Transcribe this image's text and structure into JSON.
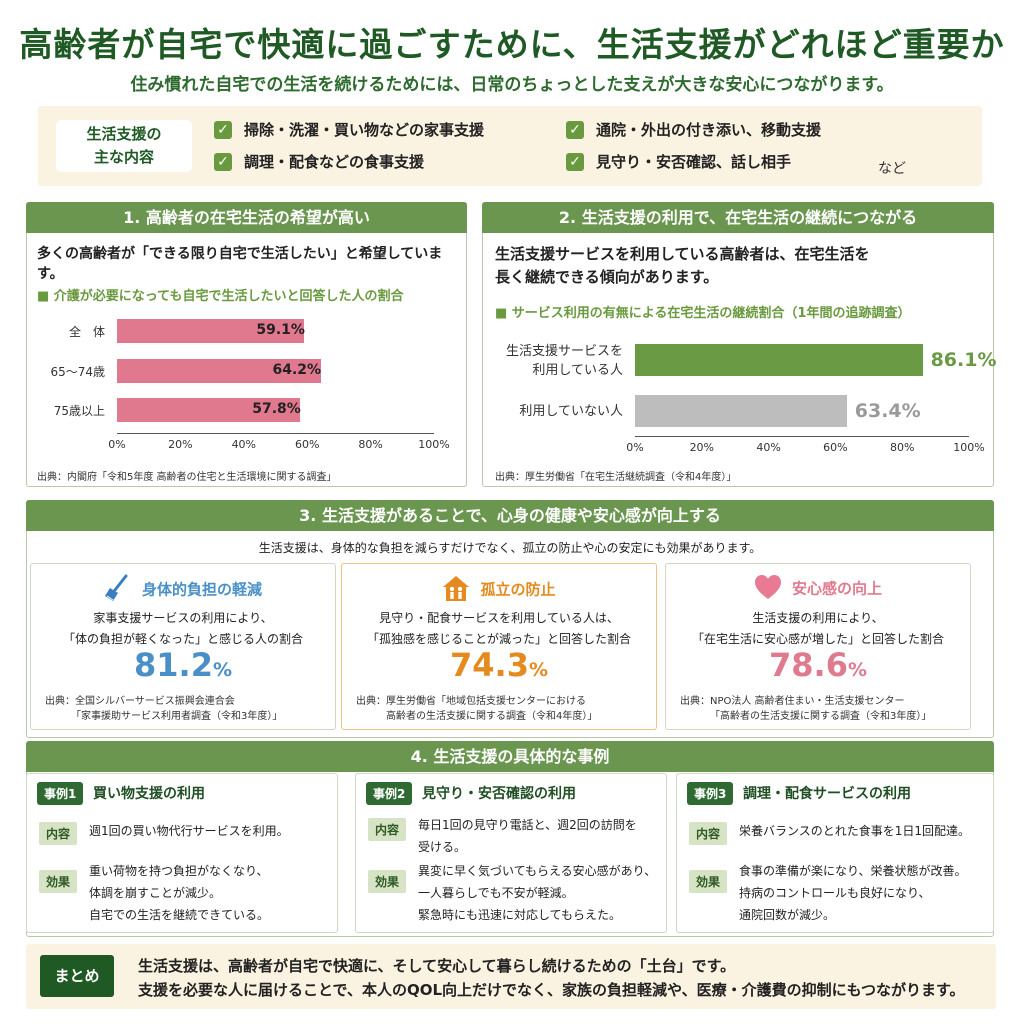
{
  "header": {
    "title": "高齢者が自宅で快適に過ごすために、生活支援がどれほど重要か",
    "subtitle": "住み慣れた自宅での生活を続けるためには、日常のちょっとした支えが大きな安心につながります。"
  },
  "intro": {
    "label_line1": "生活支援の",
    "label_line2": "主な内容",
    "items": [
      "掃除・洗濯・買い物などの家事支援",
      "調理・配食などの食事支援",
      "通院・外出の付き添い、移動支援",
      "見守り・安否確認、話し相手"
    ],
    "etc": "など",
    "check_icon": "✓"
  },
  "section1": {
    "heading": "1. 高齢者の在宅生活の希望が高い",
    "lead": "多くの高齢者が「できる限り自宅で生活したい」と希望しています。",
    "chart_title": "■ 介護が必要になっても自宅で生活したいと回答した人の割合",
    "source": "出典：内閣府「令和5年度 高齢者の住宅と生活環境に関する調査」"
  },
  "section2": {
    "heading": "2. 生活支援の利用で、在宅生活の継続につながる",
    "lead_line1": "生活支援サービスを利用している高齢者は、在宅生活を",
    "lead_line2": "長く継続できる傾向があります。",
    "chart_title": "■ サービス利用の有無による在宅生活の継続割合（1年間の追跡調査）",
    "source": "出典：厚生労働省「在宅生活継続調査（令和4年度）」"
  },
  "chart_data": [
    {
      "type": "bar",
      "orientation": "horizontal",
      "categories": [
        "全　体",
        "65〜74歳",
        "75歳以上"
      ],
      "values": [
        59.1,
        64.2,
        57.8
      ],
      "value_labels": [
        "59.1%",
        "64.2%",
        "57.8%"
      ],
      "xlim": [
        0,
        100
      ],
      "ticks": [
        "0%",
        "20%",
        "40%",
        "60%",
        "80%",
        "100%"
      ],
      "colors": [
        "#e0788e"
      ]
    },
    {
      "type": "bar",
      "orientation": "horizontal",
      "categories": [
        [
          "生活支援サービスを",
          "利用している人"
        ],
        [
          "利用していない人"
        ]
      ],
      "values": [
        86.1,
        63.4
      ],
      "value_labels": [
        "86.1%",
        "63.4%"
      ],
      "xlim": [
        0,
        100
      ],
      "ticks": [
        "0%",
        "20%",
        "40%",
        "60%",
        "80%",
        "100%"
      ],
      "colors": [
        "#6b9a45",
        "#bdbdbd"
      ],
      "label_colors": [
        "#6b9a45",
        "#9a9a9a"
      ]
    }
  ],
  "section3": {
    "heading": "3. 生活支援があることで、心身の健康や安心感が向上する",
    "lead": "生活支援は、身体的な負担を減らすだけでなく、孤立の防止や心の安定にも効果があります。",
    "cards": [
      {
        "icon": "broom-icon",
        "title": "身体的負担の軽減",
        "desc1": "家事支援サービスの利用により、",
        "desc2": "「体の負担が軽くなった」と感じる人の割合",
        "value": "81.2",
        "unit": "%",
        "source1": "出典：全国シルバーサービス振興会連合会",
        "source2": "「家事援助サービス利用者調査（令和3年度）」",
        "color": "#4a90c8"
      },
      {
        "icon": "family-house-icon",
        "title": "孤立の防止",
        "desc1": "見守り・配食サービスを利用している人は、",
        "desc2": "「孤独感を感じることが減った」と回答した割合",
        "value": "74.3",
        "unit": "%",
        "source1": "出典：厚生労働省「地域包括支援センターにおける",
        "source2": "高齢者の生活支援に関する調査（令和4年度）」",
        "color": "#e58a1f"
      },
      {
        "icon": "heart-icon",
        "title": "安心感の向上",
        "desc1": "生活支援の利用により、",
        "desc2": "「在宅生活に安心感が増した」と回答した割合",
        "value": "78.6",
        "unit": "%",
        "source1": "出典：NPO法人 高齢者住まい・生活支援センター",
        "source2": "「高齢者の生活支援に関する調査（令和3年度）」",
        "color": "#e07a8e"
      }
    ]
  },
  "section4": {
    "heading": "4. 生活支援の具体的な事例",
    "content_label": "内容",
    "effect_label": "効果",
    "cases": [
      {
        "tag": "事例1",
        "title": "買い物支援の利用",
        "content": [
          "週1回の買い物代行サービスを利用。"
        ],
        "effect": [
          "重い荷物を持つ負担がなくなり、",
          "体調を崩すことが減少。",
          "自宅での生活を継続できている。"
        ]
      },
      {
        "tag": "事例2",
        "title": "見守り・安否確認の利用",
        "content": [
          "毎日1回の見守り電話と、週2回の訪問を",
          "受ける。"
        ],
        "effect": [
          "異変に早く気づいてもらえる安心感があり、",
          "一人暮らしでも不安が軽減。",
          "緊急時にも迅速に対応してもらえた。"
        ]
      },
      {
        "tag": "事例3",
        "title": "調理・配食サービスの利用",
        "content": [
          "栄養バランスのとれた食事を1日1回配達。"
        ],
        "effect": [
          "食事の準備が楽になり、栄養状態が改善。",
          "持病のコントロールも良好になり、",
          "通院回数が減少。"
        ]
      }
    ]
  },
  "summary": {
    "label": "まとめ",
    "line1": "生活支援は、高齢者が自宅で快適に、そして安心して暮らし続けるための「土台」です。",
    "line2": "支援を必要な人に届けることで、本人のQOL向上だけでなく、家族の負担軽減や、医療・介護費の抑制にもつながります。"
  }
}
